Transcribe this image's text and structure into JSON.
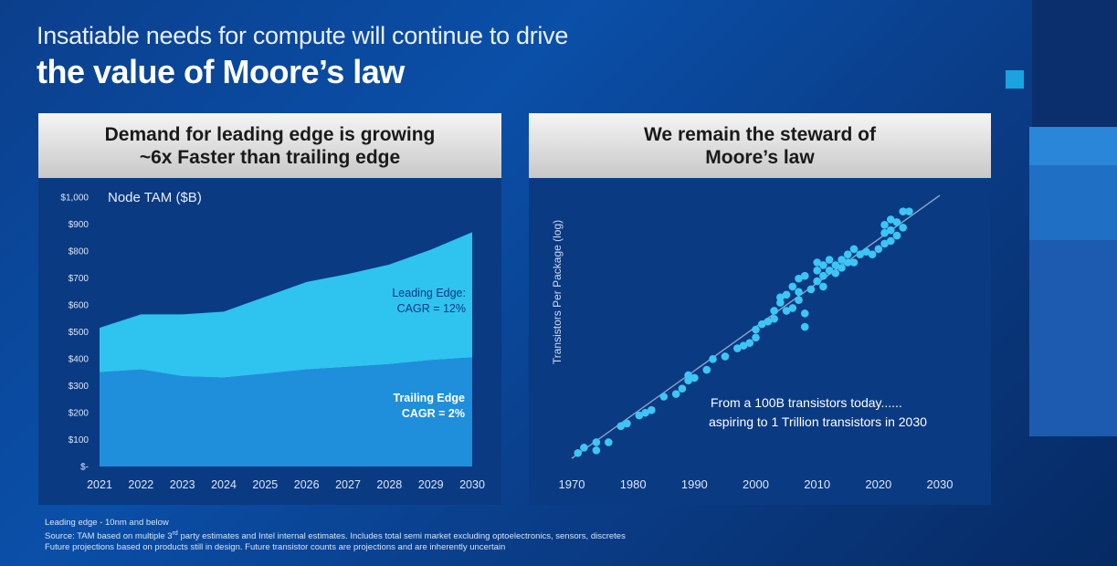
{
  "slide": {
    "title_line1": "Insatiable needs for compute will continue to drive",
    "title_line2": "the value of Moore’s law"
  },
  "left_panel": {
    "header_line1": "Demand for leading edge is growing",
    "header_line2": "~6x Faster than trailing edge"
  },
  "right_panel": {
    "header_line1": "We remain the steward of",
    "header_line2": "Moore’s law"
  },
  "colors": {
    "leading_edge": "#2fc3f0",
    "trailing_edge": "#1f8fdc",
    "scatter_point": "#3dc6f5",
    "trend_line": "#8aa6c8",
    "panel_bg": "#0a3a82"
  },
  "chart_data": [
    {
      "type": "area",
      "title": "Node TAM ($B)",
      "xlabel": "",
      "ylabel": "",
      "x": [
        "2021",
        "2022",
        "2023",
        "2024",
        "2025",
        "2026",
        "2027",
        "2028",
        "2029",
        "2030"
      ],
      "ylim": [
        0,
        1000
      ],
      "y_ticks": [
        "$-",
        "$100",
        "$200",
        "$300",
        "$400",
        "$500",
        "$600",
        "$700",
        "$800",
        "$900",
        "$1,000"
      ],
      "stacked": true,
      "series": [
        {
          "name": "Trailing Edge",
          "values": [
            350,
            360,
            335,
            330,
            345,
            360,
            370,
            380,
            395,
            405
          ]
        },
        {
          "name": "Leading Edge",
          "values": [
            165,
            205,
            230,
            245,
            285,
            325,
            345,
            370,
            410,
            465
          ]
        }
      ],
      "annotations": [
        {
          "series": "Leading Edge",
          "line1": "Leading Edge:",
          "line2": "CAGR = 12%"
        },
        {
          "series": "Trailing Edge",
          "line1": "Trailing Edge",
          "line2": "CAGR = 2%"
        }
      ]
    },
    {
      "type": "scatter",
      "title": "",
      "xlabel": "",
      "ylabel": "Transistors Per Package (log)",
      "xlim": [
        1970,
        2030
      ],
      "ylim": [
        0,
        100
      ],
      "x_ticks": [
        "1970",
        "1980",
        "1990",
        "2000",
        "2010",
        "2020",
        "2030"
      ],
      "trend_line": [
        [
          1970,
          2
        ],
        [
          2030,
          100
        ]
      ],
      "annotation_line1": "From a 100B transistors today......",
      "annotation_line2": "aspiring to 1 Trillion transistors in 2030",
      "points": [
        [
          1971,
          4
        ],
        [
          1972,
          6
        ],
        [
          1974,
          5
        ],
        [
          1974,
          8
        ],
        [
          1976,
          8
        ],
        [
          1978,
          14
        ],
        [
          1979,
          15
        ],
        [
          1981,
          18
        ],
        [
          1982,
          19
        ],
        [
          1983,
          20
        ],
        [
          1985,
          25
        ],
        [
          1987,
          26
        ],
        [
          1988,
          28
        ],
        [
          1989,
          31
        ],
        [
          1989,
          33
        ],
        [
          1990,
          32
        ],
        [
          1992,
          35
        ],
        [
          1993,
          39
        ],
        [
          1995,
          40
        ],
        [
          1997,
          43
        ],
        [
          1998,
          44
        ],
        [
          1999,
          45
        ],
        [
          2000,
          47
        ],
        [
          2000,
          50
        ],
        [
          2001,
          52
        ],
        [
          2002,
          53
        ],
        [
          2003,
          54
        ],
        [
          2003,
          57
        ],
        [
          2004,
          60
        ],
        [
          2004,
          62
        ],
        [
          2005,
          57
        ],
        [
          2005,
          63
        ],
        [
          2006,
          58
        ],
        [
          2006,
          66
        ],
        [
          2007,
          61
        ],
        [
          2007,
          64
        ],
        [
          2007,
          69
        ],
        [
          2008,
          51
        ],
        [
          2008,
          56
        ],
        [
          2008,
          70
        ],
        [
          2009,
          65
        ],
        [
          2010,
          68
        ],
        [
          2010,
          72
        ],
        [
          2010,
          75
        ],
        [
          2011,
          66
        ],
        [
          2011,
          70
        ],
        [
          2011,
          74
        ],
        [
          2012,
          72
        ],
        [
          2012,
          76
        ],
        [
          2013,
          71
        ],
        [
          2013,
          74
        ],
        [
          2014,
          73
        ],
        [
          2014,
          76
        ],
        [
          2015,
          75
        ],
        [
          2015,
          78
        ],
        [
          2016,
          75
        ],
        [
          2016,
          80
        ],
        [
          2017,
          78
        ],
        [
          2018,
          79
        ],
        [
          2019,
          78
        ],
        [
          2020,
          80
        ],
        [
          2021,
          82
        ],
        [
          2021,
          86
        ],
        [
          2021,
          89
        ],
        [
          2022,
          83
        ],
        [
          2022,
          87
        ],
        [
          2022,
          91
        ],
        [
          2023,
          85
        ],
        [
          2023,
          90
        ],
        [
          2024,
          88
        ],
        [
          2024,
          94
        ],
        [
          2025,
          94
        ]
      ]
    }
  ],
  "footnotes": {
    "line1": "Leading edge - 10nm and below",
    "line2_pre": "Source: TAM based on multiple 3",
    "line2_sup": "rd",
    "line2_post": " party estimates and Intel internal estimates. Includes total semi market excluding optoelectronics, sensors, discretes",
    "line3": "Future projections based on products still in design. Future transistor counts are projections and are inherently uncertain"
  }
}
